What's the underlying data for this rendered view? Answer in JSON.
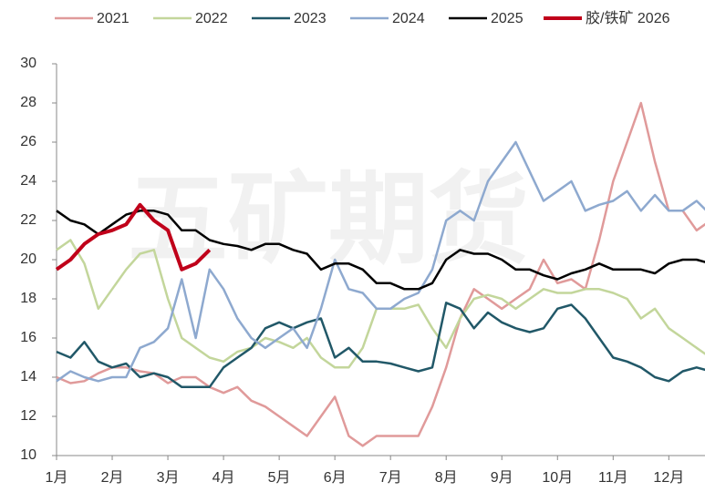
{
  "chart_data": {
    "type": "line",
    "watermark": "五矿期货",
    "x": [
      1,
      1.25,
      1.5,
      1.75,
      2,
      2.25,
      2.5,
      2.75,
      3,
      3.25,
      3.5,
      3.75,
      4,
      4.25,
      4.5,
      4.75,
      5,
      5.25,
      5.5,
      5.75,
      6,
      6.25,
      6.5,
      6.75,
      7,
      7.25,
      7.5,
      7.75,
      8,
      8.25,
      8.5,
      8.75,
      9,
      9.25,
      9.5,
      9.75,
      10,
      10.25,
      10.5,
      10.75,
      11,
      11.25,
      11.5,
      11.75,
      12,
      12.25,
      12.5,
      12.75
    ],
    "xlim": [
      1,
      12.65
    ],
    "xticks": [
      {
        "value": 1,
        "label": "1月"
      },
      {
        "value": 2,
        "label": "2月"
      },
      {
        "value": 3,
        "label": "3月"
      },
      {
        "value": 4,
        "label": "4月"
      },
      {
        "value": 5,
        "label": "5月"
      },
      {
        "value": 6,
        "label": "6月"
      },
      {
        "value": 7,
        "label": "7月"
      },
      {
        "value": 8,
        "label": "8月"
      },
      {
        "value": 9,
        "label": "9月"
      },
      {
        "value": 10,
        "label": "10月"
      },
      {
        "value": 11,
        "label": "11月"
      },
      {
        "value": 12,
        "label": "12月"
      }
    ],
    "ylim": [
      10,
      30
    ],
    "yticks": [
      10,
      12,
      14,
      16,
      18,
      20,
      22,
      24,
      26,
      28,
      30
    ],
    "grid": false,
    "legend": "top",
    "series": [
      {
        "name": "2021",
        "color": "#e09a9a",
        "width": 2.5,
        "values": [
          14,
          13.7,
          13.8,
          14.2,
          14.5,
          14.5,
          14.3,
          14.2,
          13.7,
          14,
          14,
          13.5,
          13.2,
          13.5,
          12.8,
          12.5,
          12,
          11.5,
          11,
          12,
          13,
          11,
          10.5,
          11,
          11,
          11,
          11,
          12.5,
          14.5,
          17,
          18.5,
          18,
          17.5,
          18,
          18.5,
          20,
          18.8,
          19,
          18.5,
          21,
          24,
          26,
          28,
          25,
          22.5,
          22.5,
          21.5,
          22
        ]
      },
      {
        "name": "2022",
        "color": "#c3d69b",
        "width": 2.5,
        "values": [
          20.5,
          21,
          19.8,
          17.5,
          18.5,
          19.5,
          20.3,
          20.5,
          18,
          16,
          15.5,
          15,
          14.8,
          15.3,
          15.5,
          16,
          15.8,
          15.5,
          16,
          15,
          14.5,
          14.5,
          15.5,
          17.5,
          17.5,
          17.5,
          17.7,
          16.5,
          15.5,
          17,
          18,
          18.2,
          18,
          17.5,
          18,
          18.5,
          18.3,
          18.3,
          18.5,
          18.5,
          18.3,
          18,
          17,
          17.5,
          16.5,
          16,
          15.5,
          15
        ]
      },
      {
        "name": "2023",
        "color": "#215868",
        "width": 2.5,
        "values": [
          15.3,
          15,
          15.8,
          14.8,
          14.5,
          14.7,
          14,
          14.2,
          14,
          13.5,
          13.5,
          13.5,
          14.5,
          15,
          15.5,
          16.5,
          16.8,
          16.5,
          16.8,
          17,
          15,
          15.5,
          14.8,
          14.8,
          14.7,
          14.5,
          14.3,
          14.5,
          17.8,
          17.5,
          16.5,
          17.3,
          16.8,
          16.5,
          16.3,
          16.5,
          17.5,
          17.7,
          17,
          16,
          15,
          14.8,
          14.5,
          14,
          13.8,
          14.3,
          14.5,
          14.3
        ]
      },
      {
        "name": "2024",
        "color": "#8ea9cf",
        "width": 2.5,
        "values": [
          13.8,
          14.3,
          14,
          13.8,
          14,
          14,
          15.5,
          15.8,
          16.5,
          19,
          16,
          19.5,
          18.5,
          17,
          16,
          15.5,
          16,
          16.5,
          15.5,
          17.5,
          20,
          18.5,
          18.3,
          17.5,
          17.5,
          18,
          18.3,
          19.5,
          22,
          22.5,
          22,
          24,
          25,
          26,
          24.5,
          23,
          23.5,
          24,
          22.5,
          22.8,
          23,
          23.5,
          22.5,
          23.3,
          22.5,
          22.5,
          23,
          22.3
        ]
      },
      {
        "name": "2025",
        "color": "#000000",
        "width": 2.5,
        "values": [
          22.5,
          22,
          21.8,
          21.3,
          21.8,
          22.3,
          22.5,
          22.5,
          22.3,
          21.5,
          21.5,
          21,
          20.8,
          20.7,
          20.5,
          20.8,
          20.8,
          20.5,
          20.3,
          19.5,
          19.8,
          19.8,
          19.5,
          18.8,
          18.8,
          18.5,
          18.5,
          18.8,
          20,
          20.5,
          20.3,
          20.3,
          20,
          19.5,
          19.5,
          19.2,
          19,
          19.3,
          19.5,
          19.8,
          19.5,
          19.5,
          19.5,
          19.3,
          19.8,
          20,
          20,
          19.8
        ]
      },
      {
        "name": "胶/铁矿 2026",
        "color": "#c0001a",
        "width": 4,
        "values": [
          19.5,
          20,
          20.8,
          21.3,
          21.5,
          21.8,
          22.8,
          22,
          21.5,
          19.5,
          19.8,
          20.5,
          null,
          null,
          null,
          null,
          null,
          null,
          null,
          null,
          null,
          null,
          null,
          null,
          null,
          null,
          null,
          null,
          null,
          null,
          null,
          null,
          null,
          null,
          null,
          null,
          null,
          null,
          null,
          null,
          null,
          null,
          null,
          null,
          null,
          null,
          null,
          null
        ]
      }
    ]
  }
}
